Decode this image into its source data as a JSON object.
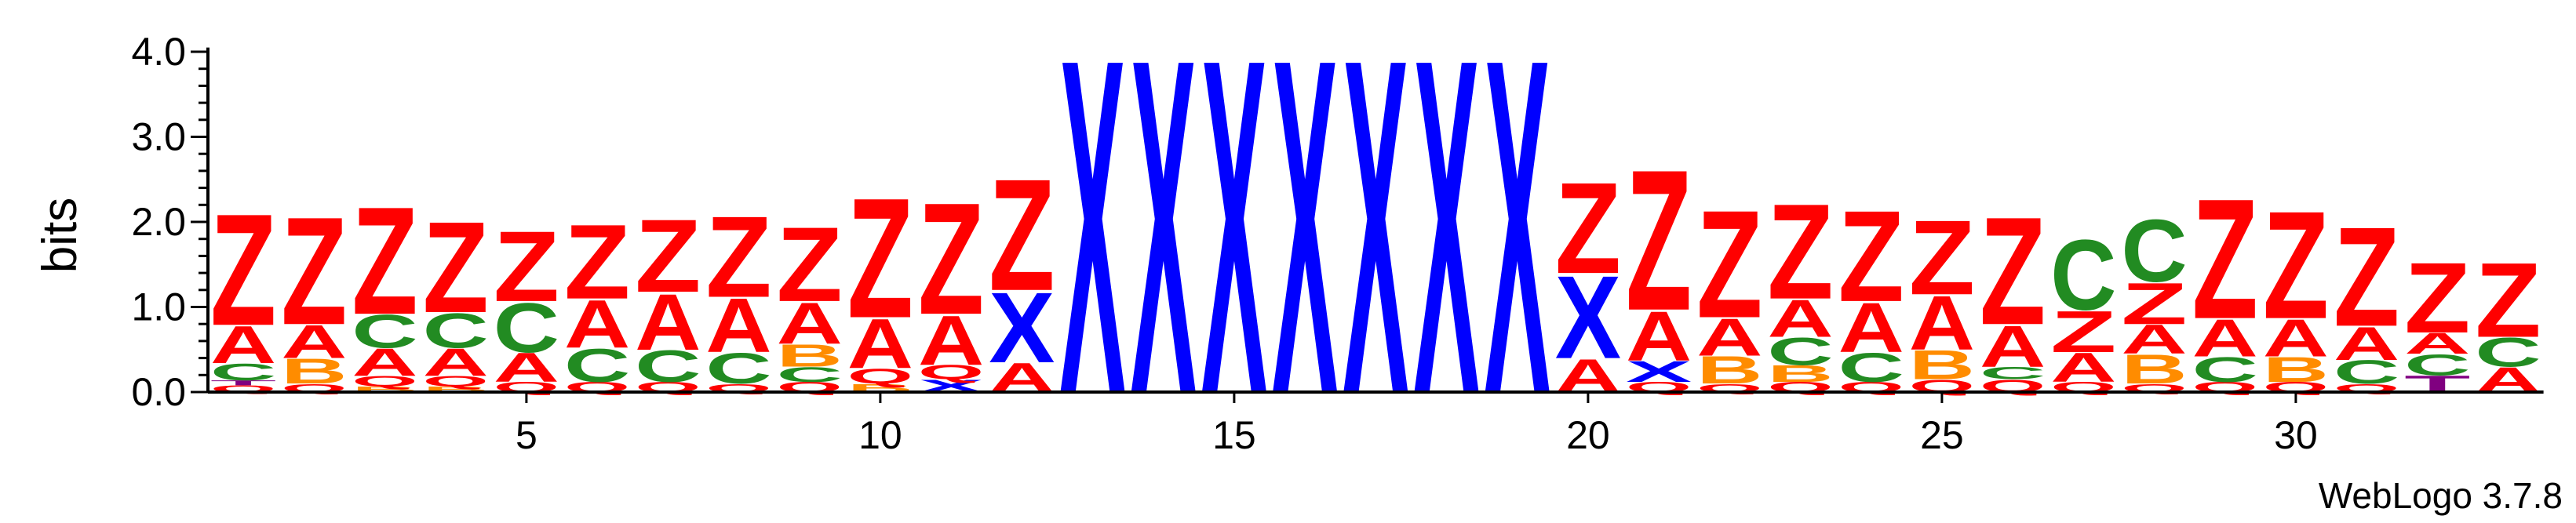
{
  "chart_data": {
    "type": "sequence-logo",
    "ylabel": "bits",
    "ylim": [
      0,
      4.0
    ],
    "yticks": [
      {
        "value": 0,
        "label": "0.0"
      },
      {
        "value": 1,
        "label": "1.0"
      },
      {
        "value": 2,
        "label": "2.0"
      },
      {
        "value": 3,
        "label": "3.0"
      },
      {
        "value": 4,
        "label": "4.0"
      }
    ],
    "xticks": [
      5,
      10,
      15,
      20,
      25,
      30
    ],
    "positions": 33,
    "credit": "WebLogo 3.7.8",
    "colors": {
      "Z": "#ff0000",
      "A": "#ff0000",
      "X": "#0000ff",
      "C": "#228b22",
      "B": "#ff8c00",
      "Q": "#ff0000",
      "T": "#800080"
    },
    "columns": [
      [
        [
          "Q",
          0.08
        ],
        [
          "T",
          0.06
        ],
        [
          "C",
          0.2
        ],
        [
          "A",
          0.45
        ],
        [
          "Z",
          1.35
        ]
      ],
      [
        [
          "Q",
          0.1
        ],
        [
          "B",
          0.3
        ],
        [
          "A",
          0.4
        ],
        [
          "Z",
          1.3
        ]
      ],
      [
        [
          "B",
          0.07
        ],
        [
          "Q",
          0.12
        ],
        [
          "A",
          0.33
        ],
        [
          "C",
          0.4
        ],
        [
          "Z",
          1.3
        ]
      ],
      [
        [
          "B",
          0.07
        ],
        [
          "Q",
          0.12
        ],
        [
          "A",
          0.33
        ],
        [
          "C",
          0.42
        ],
        [
          "Z",
          1.1
        ]
      ],
      [
        [
          "Q",
          0.12
        ],
        [
          "A",
          0.35
        ],
        [
          "C",
          0.6
        ],
        [
          "Z",
          0.85
        ]
      ],
      [
        [
          "Q",
          0.12
        ],
        [
          "C",
          0.4
        ],
        [
          "A",
          0.58
        ],
        [
          "Z",
          0.9
        ]
      ],
      [
        [
          "Q",
          0.12
        ],
        [
          "C",
          0.38
        ],
        [
          "A",
          0.68
        ],
        [
          "Z",
          0.88
        ]
      ],
      [
        [
          "Q",
          0.1
        ],
        [
          "C",
          0.37
        ],
        [
          "A",
          0.65
        ],
        [
          "Z",
          0.98
        ]
      ],
      [
        [
          "Q",
          0.12
        ],
        [
          "C",
          0.18
        ],
        [
          "B",
          0.27
        ],
        [
          "A",
          0.5
        ],
        [
          "Z",
          0.9
        ]
      ],
      [
        [
          "B",
          0.1
        ],
        [
          "Q",
          0.18
        ],
        [
          "A",
          0.6
        ],
        [
          "Z",
          1.45
        ]
      ],
      [
        [
          "X",
          0.15
        ],
        [
          "Q",
          0.17
        ],
        [
          "A",
          0.6
        ],
        [
          "Z",
          1.35
        ]
      ],
      [
        [
          "A",
          0.35
        ],
        [
          "X",
          0.85
        ],
        [
          "Z",
          1.35
        ]
      ],
      [
        [
          "X",
          4.05
        ]
      ],
      [
        [
          "X",
          4.05
        ]
      ],
      [
        [
          "X",
          4.05
        ]
      ],
      [
        [
          "X",
          4.05
        ]
      ],
      [
        [
          "X",
          4.05
        ]
      ],
      [
        [
          "X",
          4.05
        ]
      ],
      [
        [
          "X",
          4.05
        ]
      ],
      [
        [
          "A",
          0.4
        ],
        [
          "X",
          1.0
        ],
        [
          "Z",
          1.1
        ]
      ],
      [
        [
          "Q",
          0.12
        ],
        [
          "X",
          0.25
        ],
        [
          "A",
          0.6
        ],
        [
          "Z",
          1.7
        ]
      ],
      [
        [
          "Q",
          0.1
        ],
        [
          "B",
          0.33
        ],
        [
          "A",
          0.45
        ],
        [
          "Z",
          1.3
        ]
      ],
      [
        [
          "Q",
          0.12
        ],
        [
          "B",
          0.2
        ],
        [
          "C",
          0.33
        ],
        [
          "A",
          0.45
        ],
        [
          "Z",
          1.15
        ]
      ],
      [
        [
          "Q",
          0.12
        ],
        [
          "C",
          0.35
        ],
        [
          "A",
          0.6
        ],
        [
          "Z",
          1.1
        ]
      ],
      [
        [
          "Q",
          0.15
        ],
        [
          "B",
          0.35
        ],
        [
          "A",
          0.65
        ],
        [
          "Z",
          0.9
        ]
      ],
      [
        [
          "Q",
          0.15
        ],
        [
          "C",
          0.15
        ],
        [
          "A",
          0.5
        ],
        [
          "Z",
          1.3
        ]
      ],
      [
        [
          "Q",
          0.12
        ],
        [
          "A",
          0.35
        ],
        [
          "Z",
          0.5
        ],
        [
          "C",
          0.85
        ]
      ],
      [
        [
          "Q",
          0.1
        ],
        [
          "B",
          0.35
        ],
        [
          "A",
          0.35
        ],
        [
          "Z",
          0.5
        ],
        [
          "C",
          0.75
        ]
      ],
      [
        [
          "Q",
          0.12
        ],
        [
          "C",
          0.3
        ],
        [
          "A",
          0.45
        ],
        [
          "Z",
          1.45
        ]
      ],
      [
        [
          "Q",
          0.12
        ],
        [
          "B",
          0.3
        ],
        [
          "A",
          0.45
        ],
        [
          "Z",
          1.3
        ]
      ],
      [
        [
          "Q",
          0.1
        ],
        [
          "C",
          0.28
        ],
        [
          "A",
          0.4
        ],
        [
          "Z",
          1.2
        ]
      ],
      [
        [
          "T",
          0.2
        ],
        [
          "C",
          0.25
        ],
        [
          "A",
          0.25
        ],
        [
          "Z",
          0.85
        ]
      ],
      [
        [
          "A",
          0.3
        ],
        [
          "C",
          0.35
        ],
        [
          "Z",
          0.9
        ]
      ]
    ]
  }
}
